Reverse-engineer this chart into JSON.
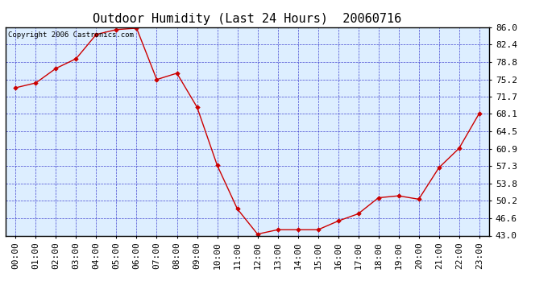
{
  "title": "Outdoor Humidity (Last 24 Hours)  20060716",
  "copyright_text": "Copyright 2006 Castronics.com",
  "x_labels": [
    "00:00",
    "01:00",
    "02:00",
    "03:00",
    "04:00",
    "05:00",
    "06:00",
    "07:00",
    "08:00",
    "09:00",
    "10:00",
    "11:00",
    "12:00",
    "13:00",
    "14:00",
    "15:00",
    "16:00",
    "17:00",
    "18:00",
    "19:00",
    "20:00",
    "21:00",
    "22:00",
    "23:00"
  ],
  "y_values": [
    73.5,
    74.5,
    77.5,
    79.5,
    84.5,
    85.5,
    85.8,
    75.2,
    76.5,
    69.5,
    57.5,
    48.5,
    43.3,
    44.2,
    44.2,
    44.2,
    46.0,
    47.5,
    50.8,
    51.2,
    50.5,
    57.0,
    61.0,
    68.2
  ],
  "yticks": [
    43.0,
    46.6,
    50.2,
    53.8,
    57.3,
    60.9,
    64.5,
    68.1,
    71.7,
    75.2,
    78.8,
    82.4,
    86.0
  ],
  "ymin": 43.0,
  "ymax": 86.0,
  "line_color": "#cc0000",
  "marker_color": "#cc0000",
  "fig_bg_color": "#ffffff",
  "plot_bg_color": "#ddeeff",
  "grid_color": "#3333cc",
  "title_color": "#000000",
  "border_color": "#000000",
  "title_fontsize": 11,
  "tick_fontsize": 8,
  "copyright_fontsize": 6.5
}
